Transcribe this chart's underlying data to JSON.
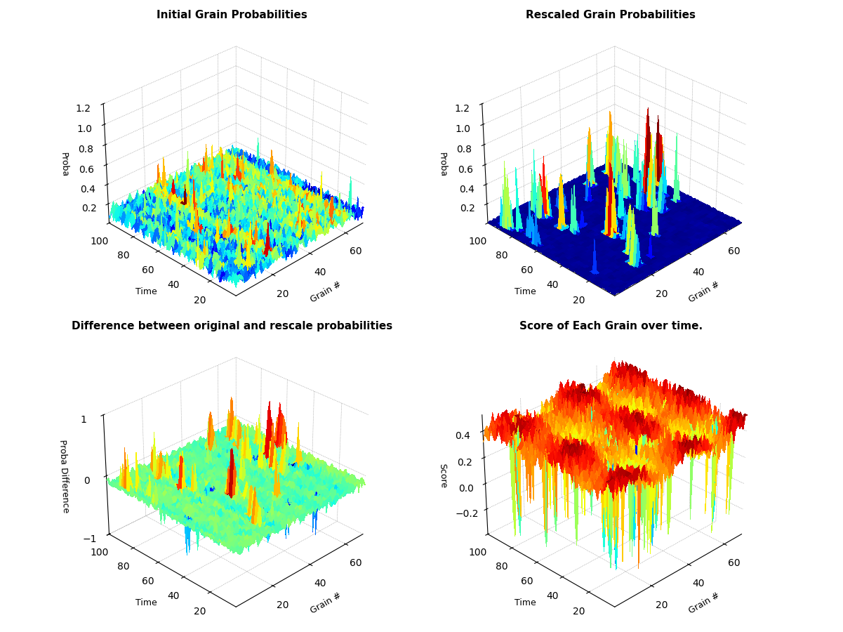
{
  "n_grains": 70,
  "n_time": 100,
  "title1": "Initial Grain Probabilities",
  "title2": "Rescaled Grain Probabilities",
  "title3": "Difference between original and rescale probabilities",
  "title4": "Score of Each Grain over time.",
  "xlabel": "Grain #",
  "ylabel_time": "Time",
  "zlabel1": "Proba",
  "zlabel2": "Proba",
  "zlabel3": "Proba Difference",
  "zlabel4": "Score",
  "zlim1": [
    0,
    1.2
  ],
  "zlim2": [
    0,
    1.2
  ],
  "zlim3": [
    -1,
    1
  ],
  "zlim4": [
    -0.4,
    0.5
  ],
  "background_color": "#ffffff",
  "seed": 42,
  "elev": 30,
  "azim": 225
}
